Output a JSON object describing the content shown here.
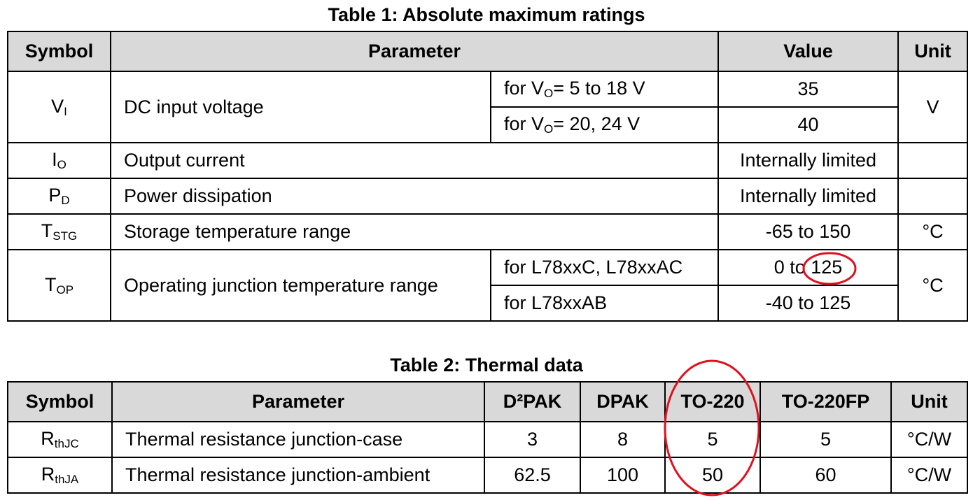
{
  "table1": {
    "title": "Table 1: Absolute maximum ratings",
    "headers": {
      "symbol": "Symbol",
      "parameter": "Parameter",
      "value": "Value",
      "unit": "Unit"
    },
    "rows": [
      {
        "sym": "V",
        "sub": "I",
        "param": "DC input voltage",
        "conditions": [
          {
            "cond_pre": "for V",
            "cond_sub": "O",
            "cond_post": "= 5 to 18 V",
            "value": "35"
          },
          {
            "cond_pre": "for V",
            "cond_sub": "O",
            "cond_post": "= 20, 24 V",
            "value": "40"
          }
        ],
        "unit": "V"
      },
      {
        "sym": "I",
        "sub": "O",
        "param": "Output current",
        "value": "Internally limited",
        "unit": ""
      },
      {
        "sym": "P",
        "sub": "D",
        "param": "Power dissipation",
        "value": "Internally limited",
        "unit": ""
      },
      {
        "sym": "T",
        "sub": "STG",
        "param": "Storage temperature range",
        "value": "-65 to 150",
        "unit": "°C"
      },
      {
        "sym": "T",
        "sub": "OP",
        "param": "Operating junction temperature range",
        "conditions": [
          {
            "cond": "for L78xxC, L78xxAC",
            "value": "0 to 125"
          },
          {
            "cond": "for L78xxAB",
            "value": "-40 to 125"
          }
        ],
        "unit": "°C"
      }
    ]
  },
  "table2": {
    "title": "Table 2: Thermal data",
    "headers": [
      "Symbol",
      "Parameter",
      "D²PAK",
      "DPAK",
      "TO-220",
      "TO-220FP",
      "Unit"
    ],
    "rows": [
      {
        "sym": "R",
        "sub": "thJC",
        "param": "Thermal resistance junction-case",
        "values": [
          "3",
          "8",
          "5",
          "5"
        ],
        "unit": "°C/W"
      },
      {
        "sym": "R",
        "sub": "thJA",
        "param": "Thermal resistance junction-ambient",
        "values": [
          "62.5",
          "100",
          "50",
          "60"
        ],
        "unit": "°C/W"
      }
    ]
  },
  "annotations": {
    "color": "#e01020",
    "marks": [
      "circle around 125 in 0 to 125",
      "ellipse around TO-220 column"
    ]
  }
}
